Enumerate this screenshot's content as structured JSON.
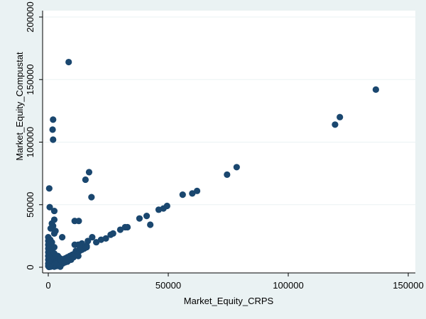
{
  "chart_data": {
    "type": "scatter",
    "title": "",
    "xlabel": "Market_Equity_CRPS",
    "ylabel": "Market_Equity_Compustat",
    "xlim": [
      0,
      150000
    ],
    "ylim": [
      0,
      200000
    ],
    "x_ticks": [
      0,
      50000,
      100000,
      150000
    ],
    "y_ticks": [
      0,
      50000,
      100000,
      150000,
      200000
    ],
    "x_tick_labels": [
      "0",
      "50000",
      "100000",
      "150000"
    ],
    "y_tick_labels": [
      "0",
      "50000",
      "100000",
      "150000",
      "200000"
    ],
    "grid": "horizontal",
    "legend": "none",
    "colors": {
      "marker": "#1a476f",
      "plot_background": "#ffffff",
      "page_background": "#eaf2f3",
      "grid": "#eaf2f3"
    },
    "points": [
      [
        8500,
        164000
      ],
      [
        2000,
        118000
      ],
      [
        1800,
        110000
      ],
      [
        2000,
        102000
      ],
      [
        400,
        63000
      ],
      [
        600,
        48000
      ],
      [
        2500,
        45000
      ],
      [
        2500,
        38000
      ],
      [
        1500,
        35000
      ],
      [
        2000,
        33000
      ],
      [
        1000,
        31000
      ],
      [
        3000,
        29000
      ],
      [
        2500,
        27000
      ],
      [
        5800,
        24000
      ],
      [
        11000,
        37000
      ],
      [
        12700,
        37000
      ],
      [
        17000,
        76000
      ],
      [
        15500,
        70000
      ],
      [
        18000,
        56000
      ],
      [
        18300,
        24000
      ],
      [
        16500,
        21000
      ],
      [
        14000,
        19000
      ],
      [
        16000,
        17000
      ],
      [
        20000,
        20000
      ],
      [
        22000,
        22000
      ],
      [
        24000,
        23000
      ],
      [
        26000,
        26000
      ],
      [
        27000,
        27000
      ],
      [
        30000,
        30000
      ],
      [
        32000,
        32000
      ],
      [
        33000,
        32000
      ],
      [
        38000,
        39000
      ],
      [
        41000,
        41000
      ],
      [
        42500,
        34000
      ],
      [
        46000,
        46000
      ],
      [
        48000,
        47000
      ],
      [
        49500,
        49000
      ],
      [
        56000,
        58000
      ],
      [
        60000,
        59000
      ],
      [
        62000,
        61000
      ],
      [
        74500,
        74000
      ],
      [
        78500,
        80000
      ],
      [
        119500,
        114000
      ],
      [
        121500,
        120000
      ],
      [
        136500,
        142000
      ],
      [
        0,
        24000
      ],
      [
        0,
        21000
      ],
      [
        0,
        18000
      ],
      [
        0,
        15000
      ],
      [
        0,
        12000
      ],
      [
        0,
        9000
      ],
      [
        0,
        6000
      ],
      [
        0,
        3000
      ],
      [
        0,
        1000
      ],
      [
        800,
        22000
      ],
      [
        800,
        16000
      ],
      [
        800,
        11000
      ],
      [
        800,
        7000
      ],
      [
        800,
        4000
      ],
      [
        800,
        1500
      ],
      [
        1500,
        20000
      ],
      [
        1500,
        14000
      ],
      [
        1500,
        9000
      ],
      [
        1500,
        5000
      ],
      [
        1500,
        2000
      ],
      [
        2500,
        16000
      ],
      [
        2500,
        11000
      ],
      [
        2500,
        7000
      ],
      [
        2500,
        3000
      ],
      [
        2500,
        500
      ],
      [
        3500,
        6000
      ],
      [
        3500,
        3000
      ],
      [
        3500,
        1000
      ],
      [
        4500,
        4000
      ],
      [
        4500,
        2000
      ],
      [
        5000,
        500
      ],
      [
        6000,
        6000
      ],
      [
        6000,
        3000
      ],
      [
        7000,
        7000
      ],
      [
        7000,
        4000
      ],
      [
        8000,
        8000
      ],
      [
        8000,
        4500
      ],
      [
        9000,
        9000
      ],
      [
        9500,
        6000
      ],
      [
        10000,
        10000
      ],
      [
        10500,
        8000
      ],
      [
        11000,
        11000
      ],
      [
        11500,
        13000
      ],
      [
        12000,
        12000
      ],
      [
        12500,
        9000
      ],
      [
        13000,
        13000
      ],
      [
        13500,
        15000
      ],
      [
        14000,
        14000
      ],
      [
        15000,
        15000
      ],
      [
        15500,
        17000
      ],
      [
        16000,
        16000
      ],
      [
        11000,
        18000
      ],
      [
        12500,
        18000
      ],
      [
        13000,
        17000
      ],
      [
        3000,
        2500
      ],
      [
        4000,
        3500
      ],
      [
        5000,
        4500
      ],
      [
        5500,
        5000
      ],
      [
        6500,
        5500
      ],
      [
        7500,
        6500
      ],
      [
        2000,
        1000
      ],
      [
        1000,
        500
      ],
      [
        300,
        300
      ],
      [
        3000,
        8000
      ],
      [
        4000,
        9000
      ],
      [
        5000,
        7000
      ]
    ]
  }
}
